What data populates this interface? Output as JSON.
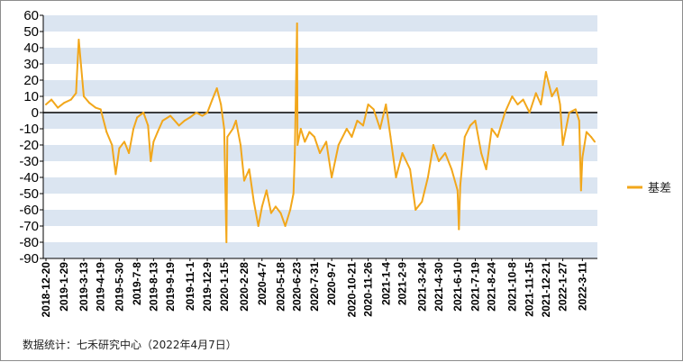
{
  "chart_data": {
    "type": "line",
    "title": "",
    "xlabel": "",
    "ylabel": "",
    "ylim": [
      -90,
      60
    ],
    "yticks": [
      60,
      50,
      40,
      30,
      20,
      10,
      0,
      -10,
      -20,
      -30,
      -40,
      -50,
      -60,
      -70,
      -80,
      -90
    ],
    "grid": "horizontal alternating bands",
    "legend_position": "right",
    "colors": {
      "series": "#f2a71b",
      "band": "#dbe5f1",
      "zero_line": "#000000"
    },
    "x_tick_labels": [
      "2018-12-20",
      "2019-1-29",
      "2019-3-13",
      "2019-4-19",
      "2019-5-30",
      "2019-7-8",
      "2019-8-13",
      "2019-9-19",
      "2019-11-1",
      "2019-12-9",
      "2020-1-15",
      "2020-2-28",
      "2020-4-7",
      "2020-5-18",
      "2020-6-23",
      "2020-7-31",
      "2020-9-7",
      "2020-10-21",
      "2020-11-26",
      "2021-1-4",
      "2021-2-9",
      "2021-3-24",
      "2021-4-30",
      "2021-6-10",
      "2021-7-19",
      "2021-8-24",
      "2021-10-8",
      "2021-11-15",
      "2021-12-21",
      "2022-1-27",
      "2022-3-11"
    ],
    "series": [
      {
        "name": "基差",
        "x": [
          "2018-12-20",
          "2019-1-1",
          "2019-1-15",
          "2019-1-29",
          "2019-2-13",
          "2019-2-24",
          "2019-3-2",
          "2019-3-13",
          "2019-3-25",
          "2019-4-8",
          "2019-4-19",
          "2019-5-2",
          "2019-5-14",
          "2019-5-22",
          "2019-5-30",
          "2019-6-10",
          "2019-6-20",
          "2019-6-30",
          "2019-7-8",
          "2019-7-22",
          "2019-8-1",
          "2019-8-7",
          "2019-8-13",
          "2019-8-22",
          "2019-9-2",
          "2019-9-19",
          "2019-10-8",
          "2019-10-20",
          "2019-11-1",
          "2019-11-15",
          "2019-11-28",
          "2019-12-9",
          "2019-12-20",
          "2019-12-30",
          "2020-1-8",
          "2020-1-15",
          "2020-1-20",
          "2020-1-22",
          "2020-2-3",
          "2020-2-10",
          "2020-2-20",
          "2020-2-28",
          "2020-3-10",
          "2020-3-20",
          "2020-3-30",
          "2020-4-7",
          "2020-4-17",
          "2020-4-27",
          "2020-5-7",
          "2020-5-18",
          "2020-5-28",
          "2020-6-8",
          "2020-6-15",
          "2020-6-18",
          "2020-6-23",
          "2020-6-24",
          "2020-7-1",
          "2020-7-10",
          "2020-7-20",
          "2020-7-31",
          "2020-8-12",
          "2020-8-26",
          "2020-9-7",
          "2020-9-22",
          "2020-10-10",
          "2020-10-21",
          "2020-11-2",
          "2020-11-15",
          "2020-11-26",
          "2020-12-8",
          "2020-12-22",
          "2021-1-4",
          "2021-1-14",
          "2021-1-26",
          "2021-2-9",
          "2021-2-26",
          "2021-3-10",
          "2021-3-24",
          "2021-4-6",
          "2021-4-18",
          "2021-4-30",
          "2021-5-14",
          "2021-5-28",
          "2021-6-10",
          "2021-6-13",
          "2021-6-16",
          "2021-6-26",
          "2021-7-8",
          "2021-7-19",
          "2021-8-1",
          "2021-8-12",
          "2021-8-24",
          "2021-9-6",
          "2021-9-22",
          "2021-10-8",
          "2021-10-20",
          "2021-11-1",
          "2021-11-15",
          "2021-11-29",
          "2021-12-10",
          "2021-12-21",
          "2022-1-3",
          "2022-1-14",
          "2022-1-21",
          "2022-1-27",
          "2022-2-10",
          "2022-2-24",
          "2022-3-4",
          "2022-3-8",
          "2022-3-11",
          "2022-3-20",
          "2022-3-30",
          "2022-4-7"
        ],
        "values": [
          5,
          8,
          3,
          6,
          8,
          12,
          45,
          10,
          6,
          3,
          2,
          -12,
          -20,
          -38,
          -22,
          -18,
          -25,
          -10,
          -3,
          0,
          -8,
          -30,
          -18,
          -12,
          -5,
          -2,
          -8,
          -5,
          -3,
          0,
          -2,
          0,
          8,
          15,
          5,
          -10,
          -80,
          -15,
          -10,
          -5,
          -20,
          -42,
          -35,
          -55,
          -70,
          -58,
          -48,
          -62,
          -58,
          -62,
          -70,
          -60,
          -50,
          -25,
          55,
          -20,
          -10,
          -18,
          -12,
          -15,
          -25,
          -18,
          -40,
          -20,
          -10,
          -15,
          -5,
          -8,
          5,
          2,
          -10,
          5,
          -15,
          -40,
          -25,
          -35,
          -60,
          -55,
          -40,
          -20,
          -30,
          -25,
          -35,
          -48,
          -72,
          -45,
          -15,
          -8,
          -5,
          -25,
          -35,
          -10,
          -15,
          0,
          10,
          5,
          8,
          0,
          12,
          5,
          25,
          10,
          15,
          5,
          -20,
          0,
          2,
          -5,
          -48,
          -28,
          -12,
          -15,
          -18
        ]
      }
    ]
  },
  "legend": {
    "label": "基差"
  },
  "footer": {
    "source_text": "数据统计：七禾研究中心（2022年4月7日）"
  }
}
